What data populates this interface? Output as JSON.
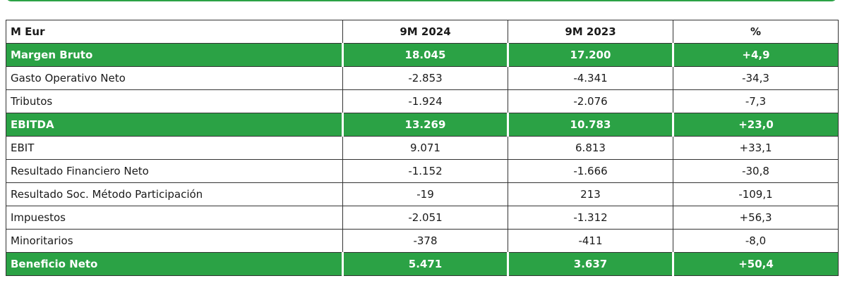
{
  "table": {
    "columns": [
      "M Eur",
      "9M 2024",
      "9M 2023",
      "%"
    ],
    "rows": [
      {
        "cells": [
          "Margen Bruto",
          "18.045",
          "17.200",
          "+4,9"
        ],
        "highlight": true
      },
      {
        "cells": [
          "Gasto Operativo Neto",
          "-2.853",
          "-4.341",
          "-34,3"
        ],
        "highlight": false
      },
      {
        "cells": [
          "Tributos",
          "-1.924",
          "-2.076",
          "-7,3"
        ],
        "highlight": false
      },
      {
        "cells": [
          "EBITDA",
          "13.269",
          "10.783",
          "+23,0"
        ],
        "highlight": true
      },
      {
        "cells": [
          "EBIT",
          "9.071",
          "6.813",
          "+33,1"
        ],
        "highlight": false
      },
      {
        "cells": [
          "Resultado Financiero Neto",
          "-1.152",
          "-1.666",
          "-30,8"
        ],
        "highlight": false
      },
      {
        "cells": [
          "Resultado Soc. Método Participación",
          "-19",
          "213",
          "-109,1"
        ],
        "highlight": false
      },
      {
        "cells": [
          "Impuestos",
          "-2.051",
          "-1.312",
          "+56,3"
        ],
        "highlight": false
      },
      {
        "cells": [
          "Minoritarios",
          "-378",
          "-411",
          "-8,0"
        ],
        "highlight": false
      },
      {
        "cells": [
          "Beneficio Neto",
          "5.471",
          "3.637",
          "+50,4"
        ],
        "highlight": true
      }
    ],
    "highlight_color": "#2ba245"
  }
}
